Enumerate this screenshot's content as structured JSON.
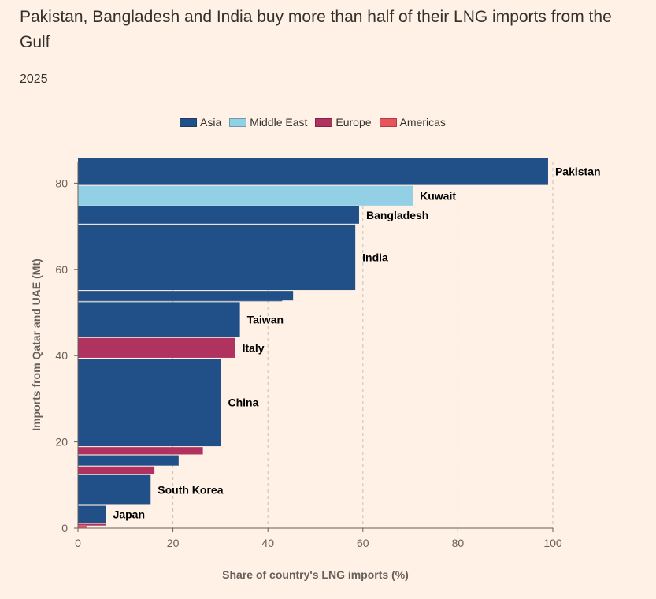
{
  "title": "Pakistan, Bangladesh and India buy more than half of their LNG imports from the Gulf",
  "subtitle": "2025",
  "legend": [
    {
      "label": "Asia",
      "color": "#215088"
    },
    {
      "label": "Middle East",
      "color": "#93d0e5"
    },
    {
      "label": "Europe",
      "color": "#b0325e"
    },
    {
      "label": "Americas",
      "color": "#e8535e"
    }
  ],
  "chart_data": {
    "type": "bar",
    "subtype": "variable-width stacked bars (marimekko)",
    "xlabel": "Share of country's LNG imports (%)",
    "ylabel": "Imports from Qatar and UAE (Mt)",
    "xlim": [
      0,
      100
    ],
    "ylim": [
      0,
      85
    ],
    "xticks": [
      "0",
      "20",
      "40",
      "60",
      "80",
      "100"
    ],
    "yticks": [
      "0",
      "20",
      "40",
      "60",
      "80"
    ],
    "grid": "vertical dashed",
    "legend_position": "top-center",
    "bars": [
      {
        "label": "Pakistan",
        "region": "Asia",
        "share": 99,
        "y_start": 79.6,
        "y_end": 85.9
      },
      {
        "label": "Kuwait",
        "region": "Middle East",
        "share": 70.5,
        "y_start": 74.8,
        "y_end": 79.4
      },
      {
        "label": "Bangladesh",
        "region": "Asia",
        "share": 59.2,
        "y_start": 70.6,
        "y_end": 74.6
      },
      {
        "label": "India",
        "region": "Asia",
        "share": 58.4,
        "y_start": 55.2,
        "y_end": 70.4
      },
      {
        "label": "",
        "region": "Asia",
        "share": 45.3,
        "y_start": 52.8,
        "y_end": 55.0
      },
      {
        "label": "",
        "region": "Asia",
        "share": 43,
        "y_start": 52.6,
        "y_end": 52.8
      },
      {
        "label": "Taiwan",
        "region": "Asia",
        "share": 34.1,
        "y_start": 44.3,
        "y_end": 52.4
      },
      {
        "label": "Italy",
        "region": "Europe",
        "share": 33.1,
        "y_start": 39.5,
        "y_end": 44.1
      },
      {
        "label": "China",
        "region": "Asia",
        "share": 30.1,
        "y_start": 19.0,
        "y_end": 39.3
      },
      {
        "label": "",
        "region": "Europe",
        "share": 26.3,
        "y_start": 17.1,
        "y_end": 18.8
      },
      {
        "label": "",
        "region": "Asia",
        "share": 21.2,
        "y_start": 14.5,
        "y_end": 16.9
      },
      {
        "label": "",
        "region": "Europe",
        "share": 16.1,
        "y_start": 12.5,
        "y_end": 14.3
      },
      {
        "label": "South Korea",
        "region": "Asia",
        "share": 15.3,
        "y_start": 5.4,
        "y_end": 12.3
      },
      {
        "label": "Japan",
        "region": "Asia",
        "share": 5.9,
        "y_start": 1.2,
        "y_end": 5.2
      },
      {
        "label": "",
        "region": "Europe",
        "share": 5.9,
        "y_start": 0.6,
        "y_end": 1.0
      },
      {
        "label": "",
        "region": "Americas",
        "share": 1.8,
        "y_start": 0.1,
        "y_end": 0.5
      }
    ]
  }
}
